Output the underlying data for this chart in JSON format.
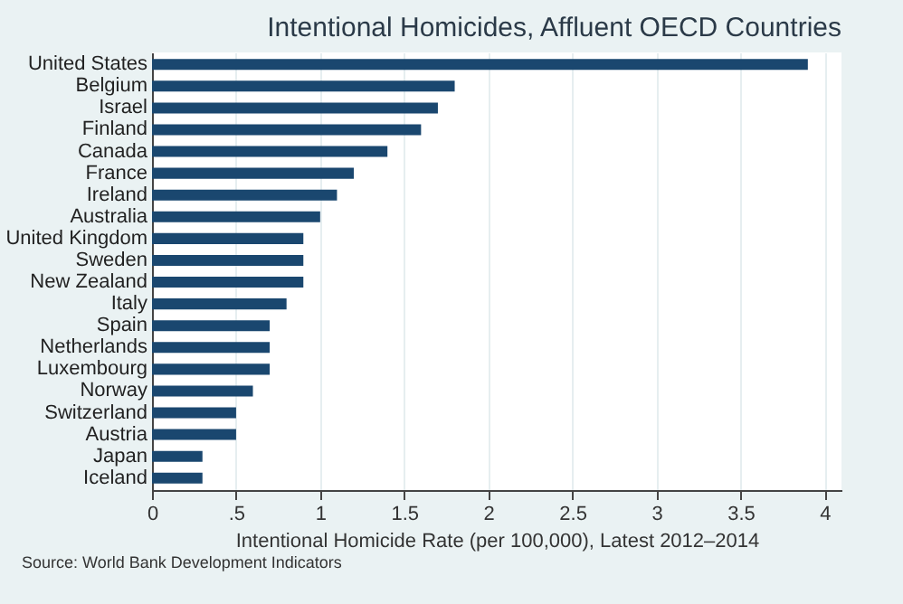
{
  "chart_data": {
    "type": "bar",
    "orientation": "horizontal",
    "title": "Intentional Homicides, Affluent OECD Countries",
    "xlabel": "Intentional Homicide Rate (per 100,000), Latest 2012–2014",
    "categories": [
      "United States",
      "Belgium",
      "Israel",
      "Finland",
      "Canada",
      "France",
      "Ireland",
      "Australia",
      "United Kingdom",
      "Sweden",
      "New Zealand",
      "Italy",
      "Spain",
      "Netherlands",
      "Luxembourg",
      "Norway",
      "Switzerland",
      "Austria",
      "Japan",
      "Iceland"
    ],
    "values": [
      3.9,
      1.8,
      1.7,
      1.6,
      1.4,
      1.2,
      1.1,
      1.0,
      0.9,
      0.9,
      0.9,
      0.8,
      0.7,
      0.7,
      0.7,
      0.6,
      0.5,
      0.5,
      0.3,
      0.3
    ],
    "color": "#1a476f",
    "xlim": [
      0,
      4.1
    ],
    "xticks": [
      0,
      {
        "value": 0.5,
        "label": ".5"
      },
      1,
      1.5,
      2,
      2.5,
      3,
      3.5,
      4
    ],
    "grid": "x",
    "annotations": [
      "Source: World Bank Development Indicators"
    ]
  }
}
